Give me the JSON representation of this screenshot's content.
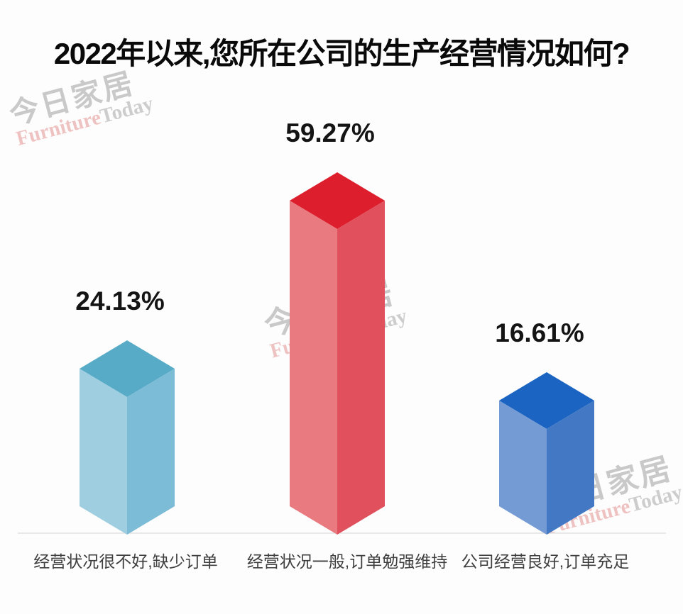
{
  "chart_data": {
    "type": "bar",
    "style": "3d-isometric-columns",
    "title": "2022年以来,您所在公司的生产经营情况如何?",
    "categories": [
      "经营状况很不好,缺少订单",
      "经营状况一般,订单勉强维持",
      "公司经营良好,订单充足"
    ],
    "values": [
      24.13,
      59.27,
      16.61
    ],
    "value_labels": [
      "24.13%",
      "59.27%",
      "16.61%"
    ],
    "unit": "%",
    "ylim": [
      0,
      70
    ],
    "grid": false,
    "legend": false,
    "baseline_color": "#e2e2e2",
    "title_color": "#0a0a0a",
    "value_label_color": "#141414",
    "category_label_color": "#3f3f3f",
    "bar_colors": [
      {
        "top": "#57abc7",
        "left": "#9ecee0",
        "right": "#7cbcd6"
      },
      {
        "top": "#dc1e2d",
        "left": "#e87a80",
        "right": "#e0515d"
      },
      {
        "top": "#1b64c2",
        "left": "#749bd4",
        "right": "#4379c4"
      }
    ]
  },
  "watermark": {
    "cn": "今日家居",
    "en_red": "Furniture",
    "en_gray": "Today",
    "gray_color": "#b7b7b7",
    "red_color": "#e7aead"
  }
}
